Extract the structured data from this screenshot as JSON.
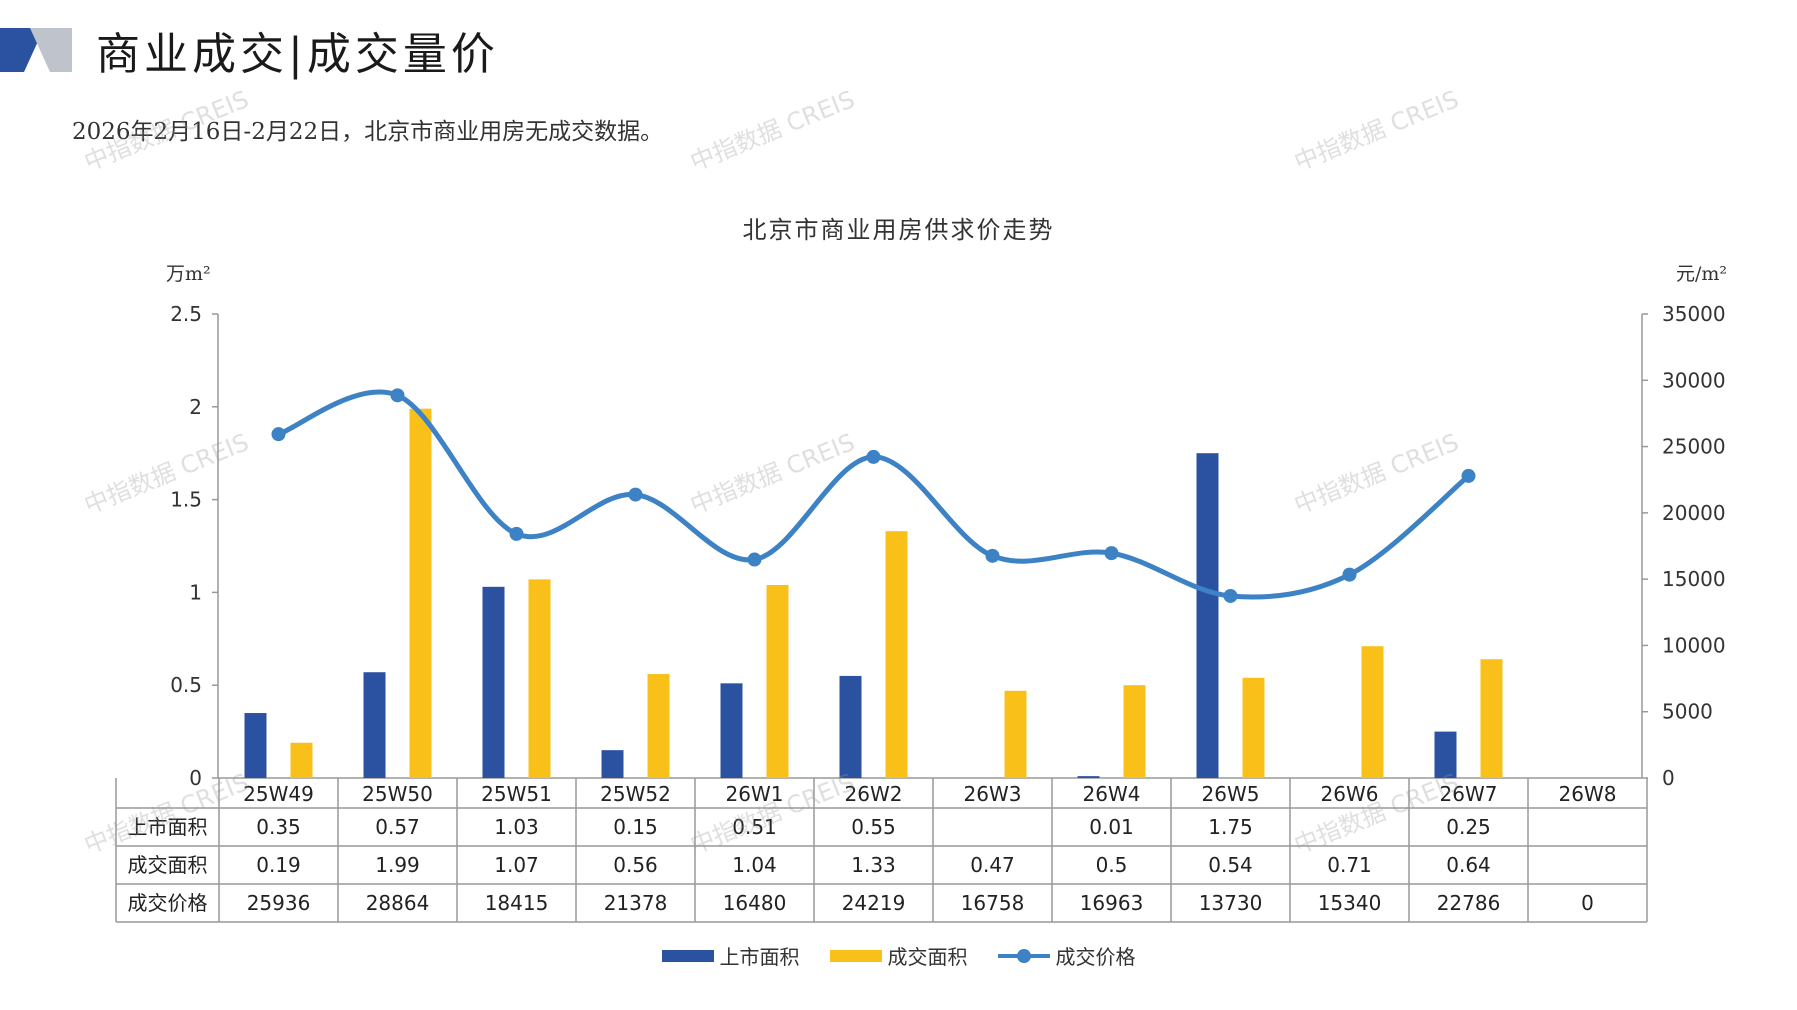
{
  "header": {
    "title": "商业成交|成交量价",
    "intro": "2026年2月16日-2月22日，北京市商业用房无成交数据。"
  },
  "watermark": "中指数据 CREIS",
  "colors": {
    "supply": "#2b52a0",
    "deal_area": "#f8c019",
    "price": "#3d82c4",
    "logo_dark": "#2b52a0",
    "logo_gray": "#bfc3cc"
  },
  "chart_data": {
    "type": "bar",
    "title": "北京市商业用房供求价走势",
    "left_unit": "万m²",
    "right_unit": "元/m²",
    "ylim": [
      0,
      2.5
    ],
    "y2lim": [
      0,
      35000
    ],
    "y_ticks": [
      "0",
      "0.5",
      "1",
      "1.5",
      "2",
      "2.5"
    ],
    "y2_ticks": [
      "0",
      "5000",
      "10000",
      "15000",
      "20000",
      "25000",
      "30000",
      "35000"
    ],
    "categories": [
      "25W49",
      "25W50",
      "25W51",
      "25W52",
      "26W1",
      "26W2",
      "26W3",
      "26W4",
      "26W5",
      "26W6",
      "26W7",
      "26W8"
    ],
    "series": [
      {
        "name": "上市面积",
        "type": "bar",
        "axis": "left",
        "values": [
          0.35,
          0.57,
          1.03,
          0.15,
          0.51,
          0.55,
          null,
          0.01,
          1.75,
          null,
          0.25,
          null
        ],
        "labels": [
          "0.35",
          "0.57",
          "1.03",
          "0.15",
          "0.51",
          "0.55",
          "",
          "0.01",
          "1.75",
          "",
          "0.25",
          ""
        ]
      },
      {
        "name": "成交面积",
        "type": "bar",
        "axis": "left",
        "values": [
          0.19,
          1.99,
          1.07,
          0.56,
          1.04,
          1.33,
          0.47,
          0.5,
          0.54,
          0.71,
          0.64,
          null
        ],
        "labels": [
          "0.19",
          "1.99",
          "1.07",
          "0.56",
          "1.04",
          "1.33",
          "0.47",
          "0.5",
          "0.54",
          "0.71",
          "0.64",
          ""
        ]
      },
      {
        "name": "成交价格",
        "type": "line",
        "axis": "right",
        "values": [
          25936,
          28864,
          18415,
          21378,
          16480,
          24219,
          16758,
          16963,
          13730,
          15340,
          22786,
          0
        ],
        "labels": [
          "25936",
          "28864",
          "18415",
          "21378",
          "16480",
          "24219",
          "16758",
          "16963",
          "13730",
          "15340",
          "22786",
          "0"
        ]
      }
    ],
    "legend_position": "bottom"
  }
}
